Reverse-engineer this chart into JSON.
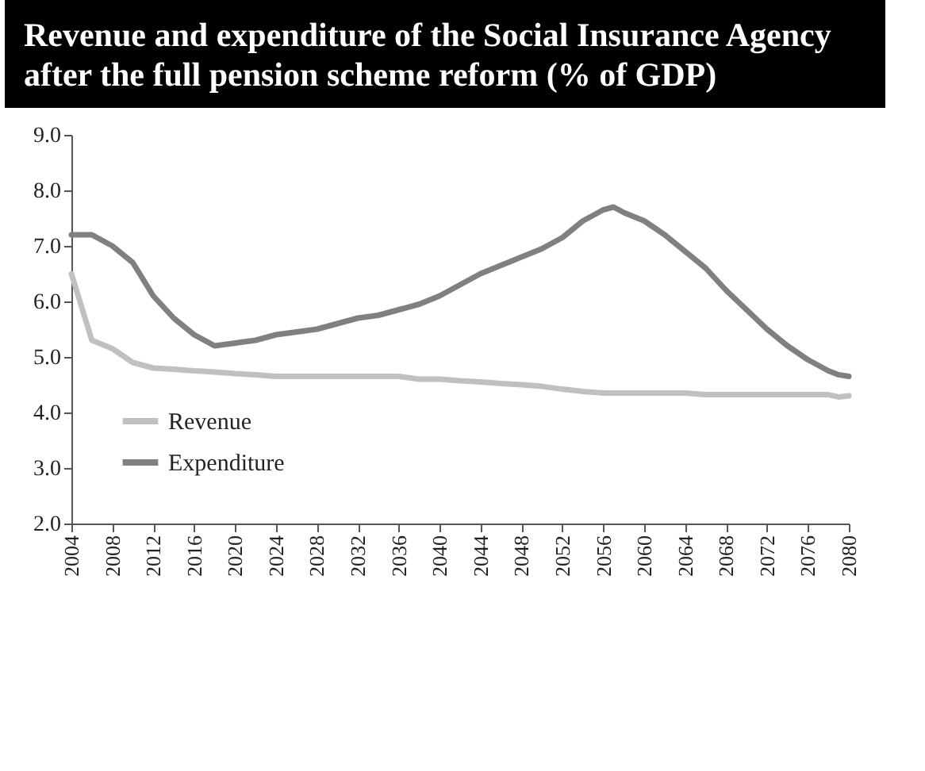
{
  "chart_data": {
    "type": "line",
    "title": "Revenue and expenditure of the Social Insurance Agency after the full pension scheme reform (% of GDP)",
    "series": [
      {
        "name": "Revenue",
        "color": "#c0c0c0",
        "x": [
          2004,
          2006,
          2008,
          2010,
          2012,
          2014,
          2016,
          2018,
          2020,
          2022,
          2024,
          2028,
          2032,
          2036,
          2038,
          2040,
          2042,
          2044,
          2046,
          2048,
          2050,
          2052,
          2054,
          2056,
          2060,
          2064,
          2066,
          2070,
          2074,
          2078,
          2079,
          2080
        ],
        "values": [
          6.5,
          5.3,
          5.15,
          4.9,
          4.8,
          4.78,
          4.75,
          4.73,
          4.7,
          4.68,
          4.65,
          4.65,
          4.65,
          4.65,
          4.6,
          4.6,
          4.57,
          4.55,
          4.52,
          4.5,
          4.47,
          4.42,
          4.38,
          4.35,
          4.35,
          4.35,
          4.32,
          4.32,
          4.32,
          4.32,
          4.28,
          4.3
        ]
      },
      {
        "name": "Expenditure",
        "color": "#808080",
        "x": [
          2004,
          2006,
          2008,
          2010,
          2012,
          2014,
          2016,
          2018,
          2020,
          2022,
          2024,
          2026,
          2028,
          2030,
          2032,
          2034,
          2036,
          2038,
          2040,
          2042,
          2044,
          2046,
          2048,
          2050,
          2052,
          2054,
          2056,
          2057,
          2058,
          2060,
          2062,
          2064,
          2066,
          2068,
          2070,
          2072,
          2074,
          2076,
          2078,
          2079,
          2080
        ],
        "values": [
          7.2,
          7.2,
          7.0,
          6.7,
          6.1,
          5.7,
          5.4,
          5.2,
          5.25,
          5.3,
          5.4,
          5.45,
          5.5,
          5.6,
          5.7,
          5.75,
          5.85,
          5.95,
          6.1,
          6.3,
          6.5,
          6.65,
          6.8,
          6.95,
          7.15,
          7.45,
          7.65,
          7.7,
          7.6,
          7.45,
          7.2,
          6.9,
          6.6,
          6.2,
          5.85,
          5.5,
          5.2,
          4.95,
          4.75,
          4.68,
          4.65
        ]
      }
    ],
    "xlim": [
      2004,
      2080
    ],
    "xticks": [
      2004,
      2008,
      2012,
      2016,
      2020,
      2024,
      2028,
      2032,
      2036,
      2040,
      2044,
      2048,
      2052,
      2056,
      2060,
      2064,
      2068,
      2072,
      2076,
      2080
    ],
    "ylim": [
      2,
      9
    ],
    "yticks": [
      {
        "value": 2,
        "label": "2.0"
      },
      {
        "value": 3,
        "label": "3.0"
      },
      {
        "value": 4,
        "label": "4.0"
      },
      {
        "value": 5,
        "label": "5.0"
      },
      {
        "value": 6,
        "label": "6.0"
      },
      {
        "value": 7,
        "label": "7.0"
      },
      {
        "value": 8,
        "label": "8.0"
      },
      {
        "value": 9,
        "label": "9.0"
      }
    ],
    "legend": "bottom left"
  }
}
